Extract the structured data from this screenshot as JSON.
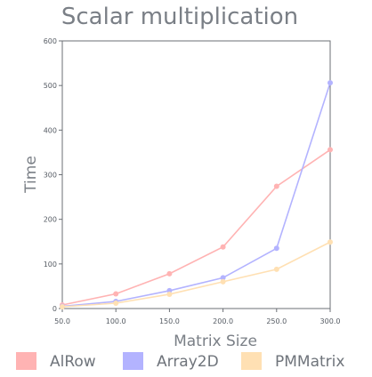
{
  "chart_data": {
    "type": "line",
    "title": "Scalar multiplication",
    "xlabel": "Matrix Size",
    "ylabel": "Time",
    "x": [
      50,
      100,
      150,
      200,
      250,
      300
    ],
    "x_tick_labels": [
      "50.0",
      "100.0",
      "150.0",
      "200.0",
      "250.0",
      "300.0"
    ],
    "y_ticks": [
      0,
      100,
      200,
      300,
      400,
      500,
      600
    ],
    "y_tick_labels": [
      "0",
      "100",
      "200",
      "300",
      "400",
      "500",
      "600"
    ],
    "xlim": [
      50,
      300
    ],
    "ylim": [
      0,
      600
    ],
    "grid": false,
    "legend_position": "bottom",
    "series": [
      {
        "name": "AlRow",
        "color": "#ffb3b3",
        "values": [
          8,
          33,
          78,
          138,
          274,
          356
        ]
      },
      {
        "name": "Array2D",
        "color": "#b3b3ff",
        "values": [
          5,
          16,
          40,
          69,
          135,
          506
        ]
      },
      {
        "name": "PMMatrix",
        "color": "#ffe0b3",
        "values": [
          4,
          12,
          32,
          60,
          88,
          149
        ]
      }
    ]
  }
}
